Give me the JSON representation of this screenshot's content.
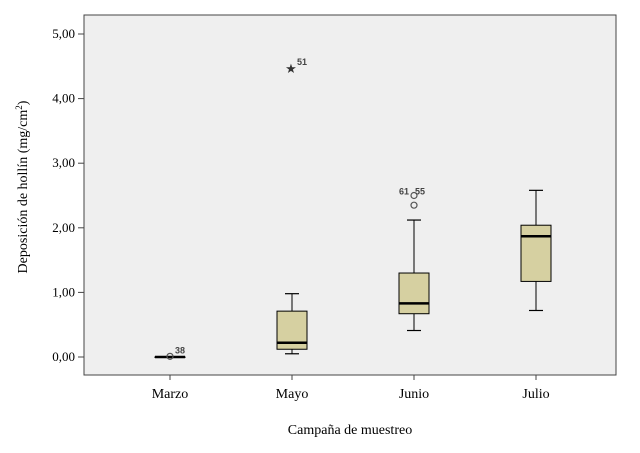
{
  "chart_data": {
    "type": "box",
    "xlabel": "Campaña de muestreo",
    "ylabel": "Deposición de hollín (mg/cm²)",
    "ylabel_parts": {
      "main": "Deposición de hollín (mg/cm",
      "sup": "2",
      "end": ")"
    },
    "ylim": [
      -0.3,
      5.15
    ],
    "yticks": [
      0,
      1,
      2,
      3,
      4,
      5
    ],
    "ytick_labels": [
      "0,00",
      "1,00",
      "2,00",
      "3,00",
      "4,00",
      "5,00"
    ],
    "grid": false,
    "categories": [
      "Marzo",
      "Mayo",
      "Junio",
      "Julio"
    ],
    "boxes": [
      {
        "category": "Marzo",
        "whisker_low": 0.0,
        "q1": 0.0,
        "median": 0.0,
        "q3": 0.0,
        "whisker_high": 0.0,
        "outliers": [
          {
            "value": 0.01,
            "label": "38",
            "marker": "circle"
          }
        ]
      },
      {
        "category": "Mayo",
        "whisker_low": 0.05,
        "q1": 0.12,
        "median": 0.22,
        "q3": 0.71,
        "whisker_high": 0.98,
        "outliers": [
          {
            "value": 4.47,
            "label": "51",
            "marker": "star"
          }
        ]
      },
      {
        "category": "Junio",
        "whisker_low": 0.41,
        "q1": 0.67,
        "median": 0.83,
        "q3": 1.3,
        "whisker_high": 2.12,
        "outliers": [
          {
            "value": 2.35,
            "label": "",
            "marker": "circle"
          },
          {
            "value": 2.5,
            "label": "61 55",
            "marker": "circle"
          }
        ]
      },
      {
        "category": "Julio",
        "whisker_low": 0.72,
        "q1": 1.17,
        "median": 1.87,
        "q3": 2.04,
        "whisker_high": 2.58,
        "outliers": []
      }
    ],
    "colors": {
      "box_fill": "#d6d0a1",
      "plot_bg": "#efefef",
      "line": "#000000",
      "text": "#000000"
    }
  }
}
